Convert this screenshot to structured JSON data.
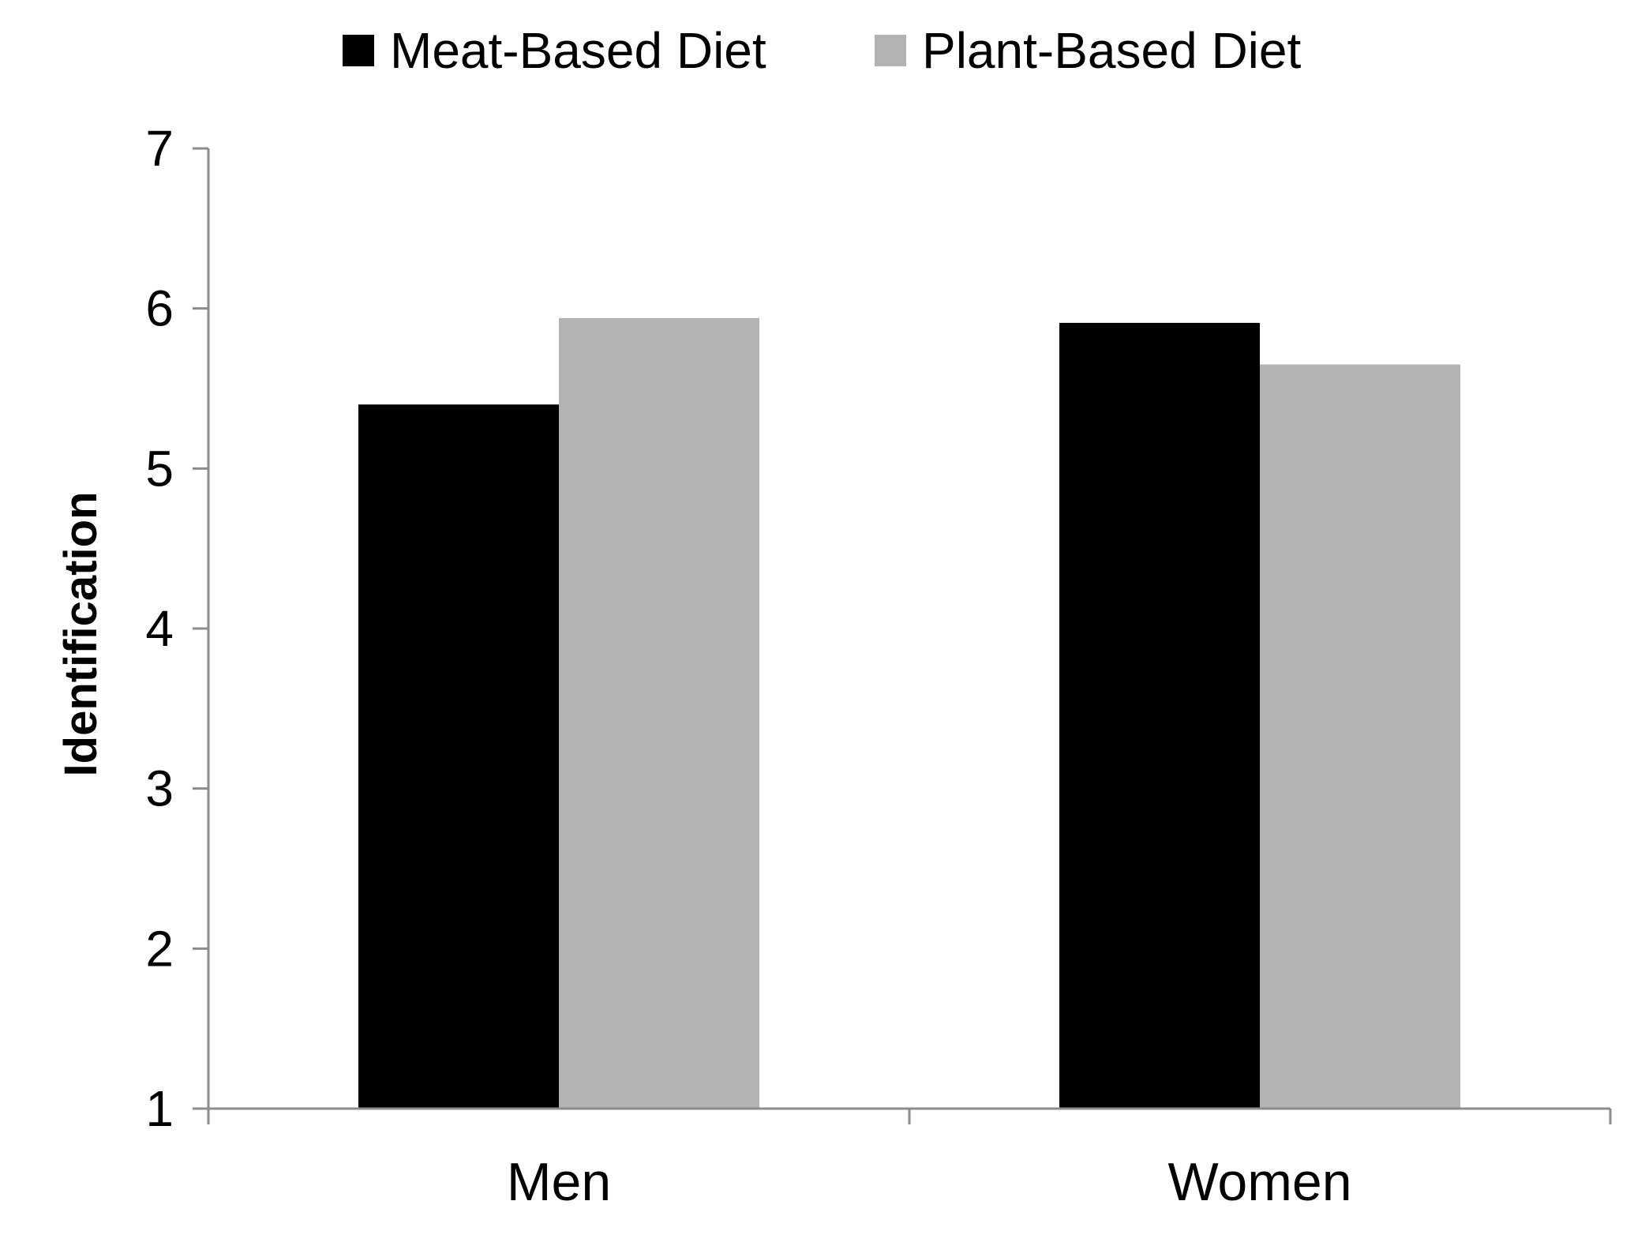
{
  "chart_data": {
    "type": "bar",
    "categories": [
      "Men",
      "Women"
    ],
    "series": [
      {
        "name": "Meat-Based Diet",
        "values": [
          5.4,
          5.91
        ],
        "color": "#000000"
      },
      {
        "name": "Plant-Based Diet",
        "values": [
          5.94,
          5.65
        ],
        "color": "#b3b3b3"
      }
    ],
    "title": "",
    "xlabel": "",
    "ylabel": "Identification",
    "ylim": [
      1,
      7
    ],
    "yticks": [
      "1",
      "2",
      "3",
      "4",
      "5",
      "6",
      "7"
    ],
    "grid": false,
    "legend_position": "top",
    "axis_color": "#8c8c8c"
  }
}
